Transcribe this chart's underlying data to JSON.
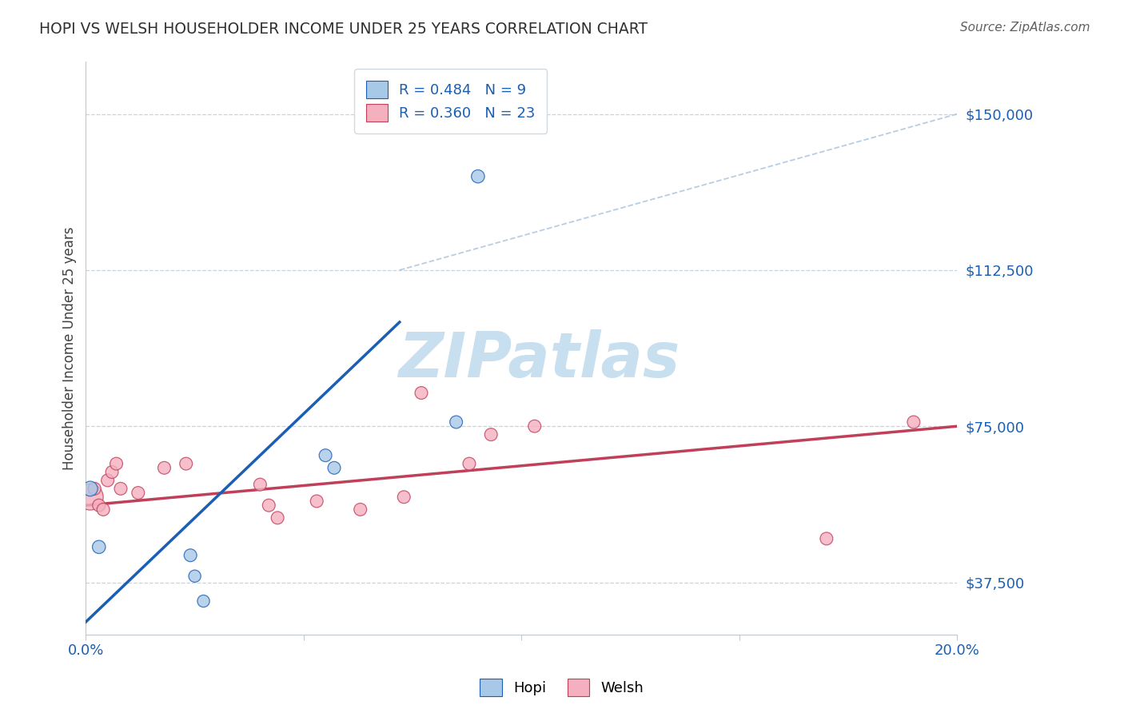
{
  "title": "HOPI VS WELSH HOUSEHOLDER INCOME UNDER 25 YEARS CORRELATION CHART",
  "source": "Source: ZipAtlas.com",
  "ylabel": "Householder Income Under 25 years",
  "xlim": [
    0.0,
    0.2
  ],
  "ylim": [
    25000,
    162500
  ],
  "yticks": [
    37500,
    75000,
    112500,
    150000
  ],
  "ytick_labels": [
    "$37,500",
    "$75,000",
    "$112,500",
    "$150,000"
  ],
  "xticks": [
    0.0,
    0.05,
    0.1,
    0.15,
    0.2
  ],
  "xtick_labels": [
    "0.0%",
    "",
    "",
    "",
    "20.0%"
  ],
  "hopi_color": "#a8c8e8",
  "welsh_color": "#f4b0be",
  "hopi_line_color": "#1a5fb4",
  "welsh_line_color": "#c0405a",
  "diag_color": "#b0c8e0",
  "R_hopi": 0.484,
  "N_hopi": 9,
  "R_welsh": 0.36,
  "N_welsh": 23,
  "hopi_points": [
    [
      0.001,
      60000
    ],
    [
      0.003,
      46000
    ],
    [
      0.024,
      44000
    ],
    [
      0.025,
      39000
    ],
    [
      0.027,
      33000
    ],
    [
      0.055,
      68000
    ],
    [
      0.057,
      65000
    ],
    [
      0.085,
      76000
    ],
    [
      0.09,
      135000
    ]
  ],
  "hopi_sizes": [
    180,
    140,
    130,
    120,
    120,
    130,
    130,
    130,
    140
  ],
  "welsh_points": [
    [
      0.001,
      58000
    ],
    [
      0.002,
      60000
    ],
    [
      0.003,
      56000
    ],
    [
      0.004,
      55000
    ],
    [
      0.005,
      62000
    ],
    [
      0.006,
      64000
    ],
    [
      0.007,
      66000
    ],
    [
      0.008,
      60000
    ],
    [
      0.012,
      59000
    ],
    [
      0.018,
      65000
    ],
    [
      0.023,
      66000
    ],
    [
      0.04,
      61000
    ],
    [
      0.042,
      56000
    ],
    [
      0.044,
      53000
    ],
    [
      0.053,
      57000
    ],
    [
      0.063,
      55000
    ],
    [
      0.073,
      58000
    ],
    [
      0.077,
      83000
    ],
    [
      0.088,
      66000
    ],
    [
      0.093,
      73000
    ],
    [
      0.103,
      75000
    ],
    [
      0.17,
      48000
    ],
    [
      0.19,
      76000
    ]
  ],
  "welsh_sizes": [
    550,
    130,
    130,
    130,
    130,
    130,
    130,
    130,
    130,
    130,
    130,
    130,
    130,
    130,
    130,
    130,
    130,
    130,
    130,
    130,
    130,
    130,
    130
  ],
  "hopi_line_pts": [
    [
      0.0,
      28000
    ],
    [
      0.072,
      100000
    ]
  ],
  "welsh_line_pts": [
    [
      0.0,
      56000
    ],
    [
      0.2,
      75000
    ]
  ],
  "diag_line_pts": [
    [
      0.072,
      112500
    ],
    [
      0.2,
      150000
    ]
  ],
  "background_color": "#ffffff",
  "watermark_text": "ZIPatlas",
  "watermark_color": "#c8dff0"
}
